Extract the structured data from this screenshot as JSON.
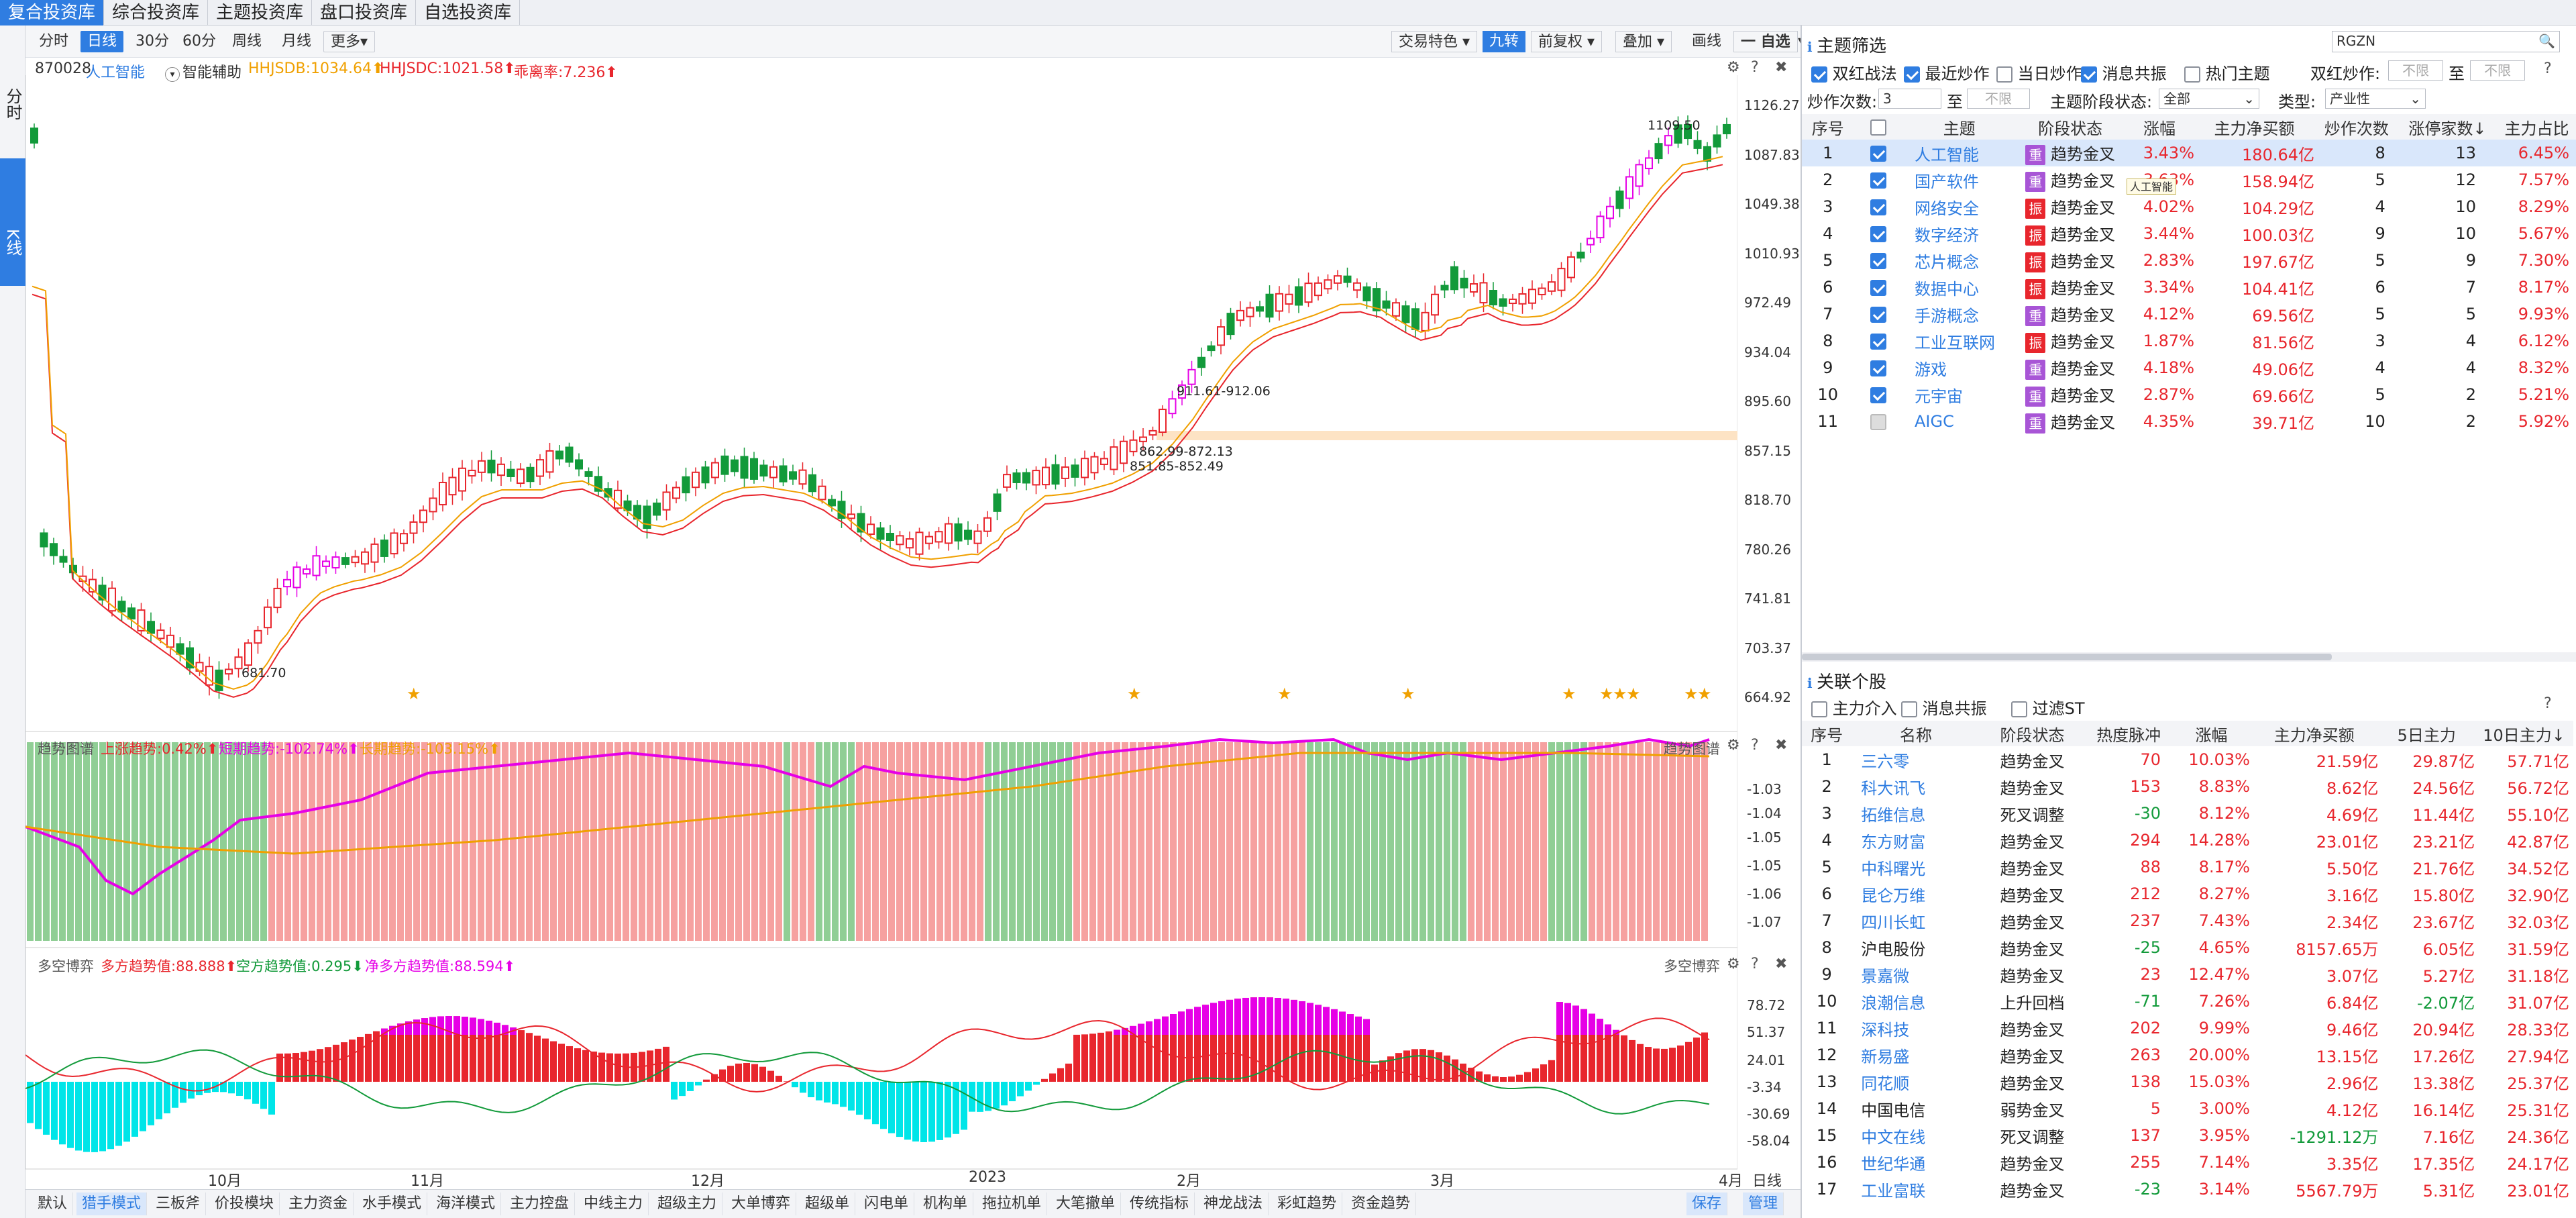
{
  "top_tabs": [
    "复合投资库",
    "综合投资库",
    "主题投资库",
    "盘口投资库",
    "自选投资库"
  ],
  "left_strip": {
    "time_share": "分时",
    "kline": "K线"
  },
  "periods": [
    "分时",
    "日线",
    "30分",
    "60分",
    "周线",
    "月线",
    "更多▾"
  ],
  "active_period": "日线",
  "toolbar_right": [
    "交易特色 ▾",
    "九转",
    "前复权 ▾",
    "叠加 ▾",
    "画线",
    "一 自选",
    "▾"
  ],
  "legend": {
    "code": "870028",
    "name": "人工智能",
    "assist": "智能辅助",
    "hhjsdb": "HHJSDB:1034.64⬆",
    "hhjsdc": "HHJSDC:1021.58⬆",
    "turnover": "乖离率:7.236⬆"
  },
  "price_axis": [
    "1126.27",
    "1087.83",
    "1049.38",
    "1010.93",
    "972.49",
    "934.04",
    "895.60",
    "857.15",
    "818.70",
    "780.26",
    "741.81",
    "703.37",
    "664.92"
  ],
  "annotations": {
    "high": "1109.50",
    "low": "681.70",
    "a1": "911.61-912.06",
    "a2": "862.99-872.13",
    "a3": "851.85-852.49"
  },
  "trend_panel": {
    "title": "趋势图谱",
    "overall": "上涨趋势:0.42%⬆",
    "short": "短期趋势:-102.74%⬆",
    "long": "长期趋势:-103.15%⬆",
    "title_right": "趋势图谱",
    "axis": [
      "-1.03",
      "-1.04",
      "-1.05",
      "-1.05",
      "-1.06",
      "-1.07"
    ]
  },
  "bull_bear_panel": {
    "title": "多空博弈",
    "bull": "多方趋势值:88.888⬆",
    "bear": "空方趋势值:0.295⬇",
    "net": "净多方趋势值:88.594⬆",
    "title_right": "多空博弈",
    "axis": [
      "78.72",
      "51.37",
      "24.01",
      "-3.34",
      "-30.69",
      "-58.04"
    ]
  },
  "date_axis": [
    "10月",
    "11月",
    "12月",
    "2023",
    "2月",
    "3月",
    "4月"
  ],
  "date_axis_right": "日线",
  "bottom_tabs": [
    "默认",
    "猎手模式",
    "三板斧",
    "价投模块",
    "主力资金",
    "水手模式",
    "海洋模式",
    "主力控盘",
    "中线主力",
    "超级主力",
    "大单博弈",
    "超级单",
    "闪电单",
    "机构单",
    "拖拉机单",
    "大笔撤单",
    "传统指标",
    "神龙战法",
    "彩虹趋势",
    "资金趋势"
  ],
  "bottom_right": {
    "save": "保存",
    "manage": "管理"
  },
  "theme_filter": {
    "title": "主题筛选",
    "search_value": "RGZN",
    "checks": [
      {
        "label": "双红战法",
        "on": true
      },
      {
        "label": "最近炒作",
        "on": true
      },
      {
        "label": "当日炒作",
        "on": false
      },
      {
        "label": "消息共振",
        "on": true
      },
      {
        "label": "热门主题",
        "on": false
      }
    ],
    "shuanghong_label": "双红炒作:",
    "to": "至",
    "unlimited": "不限",
    "count_label": "炒作次数:",
    "count_value": "3",
    "stage_label": "主题阶段状态:",
    "stage_value": "全部",
    "type_label": "类型:",
    "type_value": "产业性",
    "columns": [
      "序号",
      "",
      "主题",
      "阶段状态",
      "涨幅",
      "主力净买额",
      "炒作次数",
      "涨停家数↓",
      "主力占比"
    ],
    "tooltip": "人工智能",
    "rows": [
      {
        "no": "1",
        "name": "人工智能",
        "tag": "重",
        "stage": "趋势金叉",
        "chg": "3.43%",
        "net": "180.64亿",
        "times": "8",
        "limit": "13",
        "ratio": "6.45%"
      },
      {
        "no": "2",
        "name": "国产软件",
        "tag": "重",
        "stage": "趋势金叉",
        "chg": "3.63%",
        "net": "158.94亿",
        "times": "5",
        "limit": "12",
        "ratio": "7.57%"
      },
      {
        "no": "3",
        "name": "网络安全",
        "tag": "振",
        "stage": "趋势金叉",
        "chg": "4.02%",
        "net": "104.29亿",
        "times": "4",
        "limit": "10",
        "ratio": "8.29%"
      },
      {
        "no": "4",
        "name": "数字经济",
        "tag": "振",
        "stage": "趋势金叉",
        "chg": "3.44%",
        "net": "100.03亿",
        "times": "9",
        "limit": "10",
        "ratio": "5.67%"
      },
      {
        "no": "5",
        "name": "芯片概念",
        "tag": "振",
        "stage": "趋势金叉",
        "chg": "2.83%",
        "net": "197.67亿",
        "times": "5",
        "limit": "9",
        "ratio": "7.30%"
      },
      {
        "no": "6",
        "name": "数据中心",
        "tag": "振",
        "stage": "趋势金叉",
        "chg": "3.34%",
        "net": "104.41亿",
        "times": "6",
        "limit": "7",
        "ratio": "8.17%"
      },
      {
        "no": "7",
        "name": "手游概念",
        "tag": "重",
        "stage": "趋势金叉",
        "chg": "4.12%",
        "net": "69.56亿",
        "times": "5",
        "limit": "5",
        "ratio": "9.93%"
      },
      {
        "no": "8",
        "name": "工业互联网",
        "tag": "振",
        "stage": "趋势金叉",
        "chg": "1.87%",
        "net": "81.56亿",
        "times": "3",
        "limit": "4",
        "ratio": "6.12%"
      },
      {
        "no": "9",
        "name": "游戏",
        "tag": "重",
        "stage": "趋势金叉",
        "chg": "4.18%",
        "net": "49.06亿",
        "times": "4",
        "limit": "4",
        "ratio": "8.32%"
      },
      {
        "no": "10",
        "name": "元宇宙",
        "tag": "重",
        "stage": "趋势金叉",
        "chg": "2.87%",
        "net": "69.66亿",
        "times": "5",
        "limit": "2",
        "ratio": "5.21%"
      },
      {
        "no": "11",
        "name": "AIGC",
        "tag": "重",
        "stage": "趋势金叉",
        "chg": "4.35%",
        "net": "39.71亿",
        "times": "10",
        "limit": "2",
        "ratio": "5.92%"
      }
    ]
  },
  "related": {
    "title": "关联个股",
    "checks": [
      {
        "label": "主力介入",
        "on": false
      },
      {
        "label": "消息共振",
        "on": false
      },
      {
        "label": "过滤ST",
        "on": false
      }
    ],
    "columns": [
      "序号",
      "名称",
      "阶段状态",
      "热度脉冲",
      "涨幅",
      "主力净买额",
      "5日主力",
      "10日主力↓"
    ],
    "rows": [
      {
        "no": "1",
        "name": "三六零",
        "stage": "趋势金叉",
        "heat": "70",
        "chg": "10.03%",
        "net": "21.59亿",
        "d5": "29.87亿",
        "d10": "57.71亿"
      },
      {
        "no": "2",
        "name": "科大讯飞",
        "stage": "趋势金叉",
        "heat": "153",
        "chg": "8.83%",
        "net": "8.62亿",
        "d5": "24.56亿",
        "d10": "56.72亿"
      },
      {
        "no": "3",
        "name": "拓维信息",
        "stage": "死叉调整",
        "heat": "-30",
        "chg": "8.12%",
        "net": "4.69亿",
        "d5": "11.44亿",
        "d10": "55.10亿"
      },
      {
        "no": "4",
        "name": "东方财富",
        "stage": "趋势金叉",
        "heat": "294",
        "chg": "14.28%",
        "net": "23.01亿",
        "d5": "23.21亿",
        "d10": "42.87亿"
      },
      {
        "no": "5",
        "name": "中科曙光",
        "stage": "趋势金叉",
        "heat": "88",
        "chg": "8.17%",
        "net": "5.50亿",
        "d5": "21.76亿",
        "d10": "34.52亿"
      },
      {
        "no": "6",
        "name": "昆仑万维",
        "stage": "趋势金叉",
        "heat": "212",
        "chg": "8.27%",
        "net": "3.16亿",
        "d5": "15.80亿",
        "d10": "32.90亿"
      },
      {
        "no": "7",
        "name": "四川长虹",
        "stage": "趋势金叉",
        "heat": "237",
        "chg": "7.43%",
        "net": "2.34亿",
        "d5": "23.67亿",
        "d10": "32.03亿"
      },
      {
        "no": "8",
        "name": "沪电股份",
        "stage": "趋势金叉",
        "heat": "-25",
        "chg": "4.65%",
        "net": "8157.65万",
        "d5": "6.05亿",
        "d10": "31.59亿"
      },
      {
        "no": "9",
        "name": "景嘉微",
        "stage": "趋势金叉",
        "heat": "23",
        "chg": "12.47%",
        "net": "3.07亿",
        "d5": "5.27亿",
        "d10": "31.18亿"
      },
      {
        "no": "10",
        "name": "浪潮信息",
        "stage": "上升回档",
        "heat": "-71",
        "chg": "7.26%",
        "net": "6.84亿",
        "d5": "-2.07亿",
        "d10": "31.07亿"
      },
      {
        "no": "11",
        "name": "深科技",
        "stage": "趋势金叉",
        "heat": "202",
        "chg": "9.99%",
        "net": "9.46亿",
        "d5": "20.94亿",
        "d10": "28.33亿"
      },
      {
        "no": "12",
        "name": "新易盛",
        "stage": "趋势金叉",
        "heat": "263",
        "chg": "20.00%",
        "net": "13.15亿",
        "d5": "17.26亿",
        "d10": "27.94亿"
      },
      {
        "no": "13",
        "name": "同花顺",
        "stage": "趋势金叉",
        "heat": "138",
        "chg": "15.03%",
        "net": "2.96亿",
        "d5": "13.38亿",
        "d10": "25.37亿"
      },
      {
        "no": "14",
        "name": "中国电信",
        "stage": "弱势金叉",
        "heat": "5",
        "chg": "3.00%",
        "net": "4.12亿",
        "d5": "16.14亿",
        "d10": "25.31亿"
      },
      {
        "no": "15",
        "name": "中文在线",
        "stage": "死叉调整",
        "heat": "137",
        "chg": "3.95%",
        "net": "-1291.12万",
        "d5": "7.16亿",
        "d10": "24.36亿"
      },
      {
        "no": "16",
        "name": "世纪华通",
        "stage": "趋势金叉",
        "heat": "255",
        "chg": "7.14%",
        "net": "3.35亿",
        "d5": "17.35亿",
        "d10": "24.17亿"
      },
      {
        "no": "17",
        "name": "工业富联",
        "stage": "趋势金叉",
        "heat": "-23",
        "chg": "3.14%",
        "net": "5567.79万",
        "d5": "5.31亿",
        "d10": "23.01亿"
      }
    ]
  },
  "colors": {
    "up": "#e8262d",
    "down": "#129a3a",
    "accent": "#2f7de1",
    "magenta": "#e600e6",
    "orange": "#f0a000",
    "cyan": "#00e5e8"
  }
}
